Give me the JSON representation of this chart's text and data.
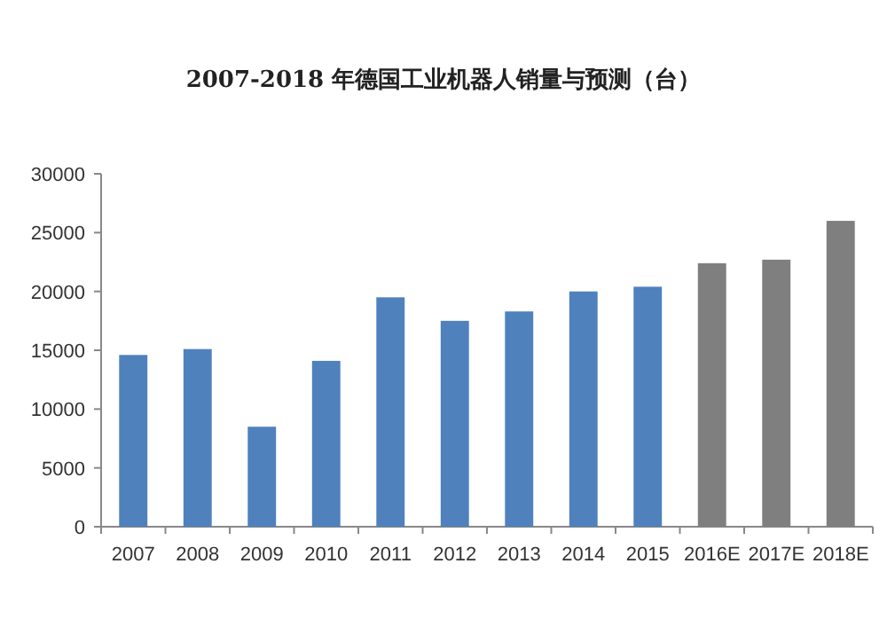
{
  "chart_data": {
    "type": "bar",
    "title": "2007-2018 年德国工业机器人销量与预测（台）",
    "categories": [
      "2007",
      "2008",
      "2009",
      "2010",
      "2011",
      "2012",
      "2013",
      "2014",
      "2015",
      "2016E",
      "2017E",
      "2018E"
    ],
    "values": [
      14600,
      15100,
      8500,
      14100,
      19500,
      17500,
      18300,
      20000,
      20400,
      22400,
      22700,
      26000
    ],
    "colors": [
      "#4f81bd",
      "#4f81bd",
      "#4f81bd",
      "#4f81bd",
      "#4f81bd",
      "#4f81bd",
      "#4f81bd",
      "#4f81bd",
      "#4f81bd",
      "#7f7f7f",
      "#7f7f7f",
      "#7f7f7f"
    ],
    "ylim": [
      0,
      30000
    ],
    "yticks": [
      0,
      5000,
      10000,
      15000,
      20000,
      25000,
      30000
    ],
    "grid": false
  }
}
